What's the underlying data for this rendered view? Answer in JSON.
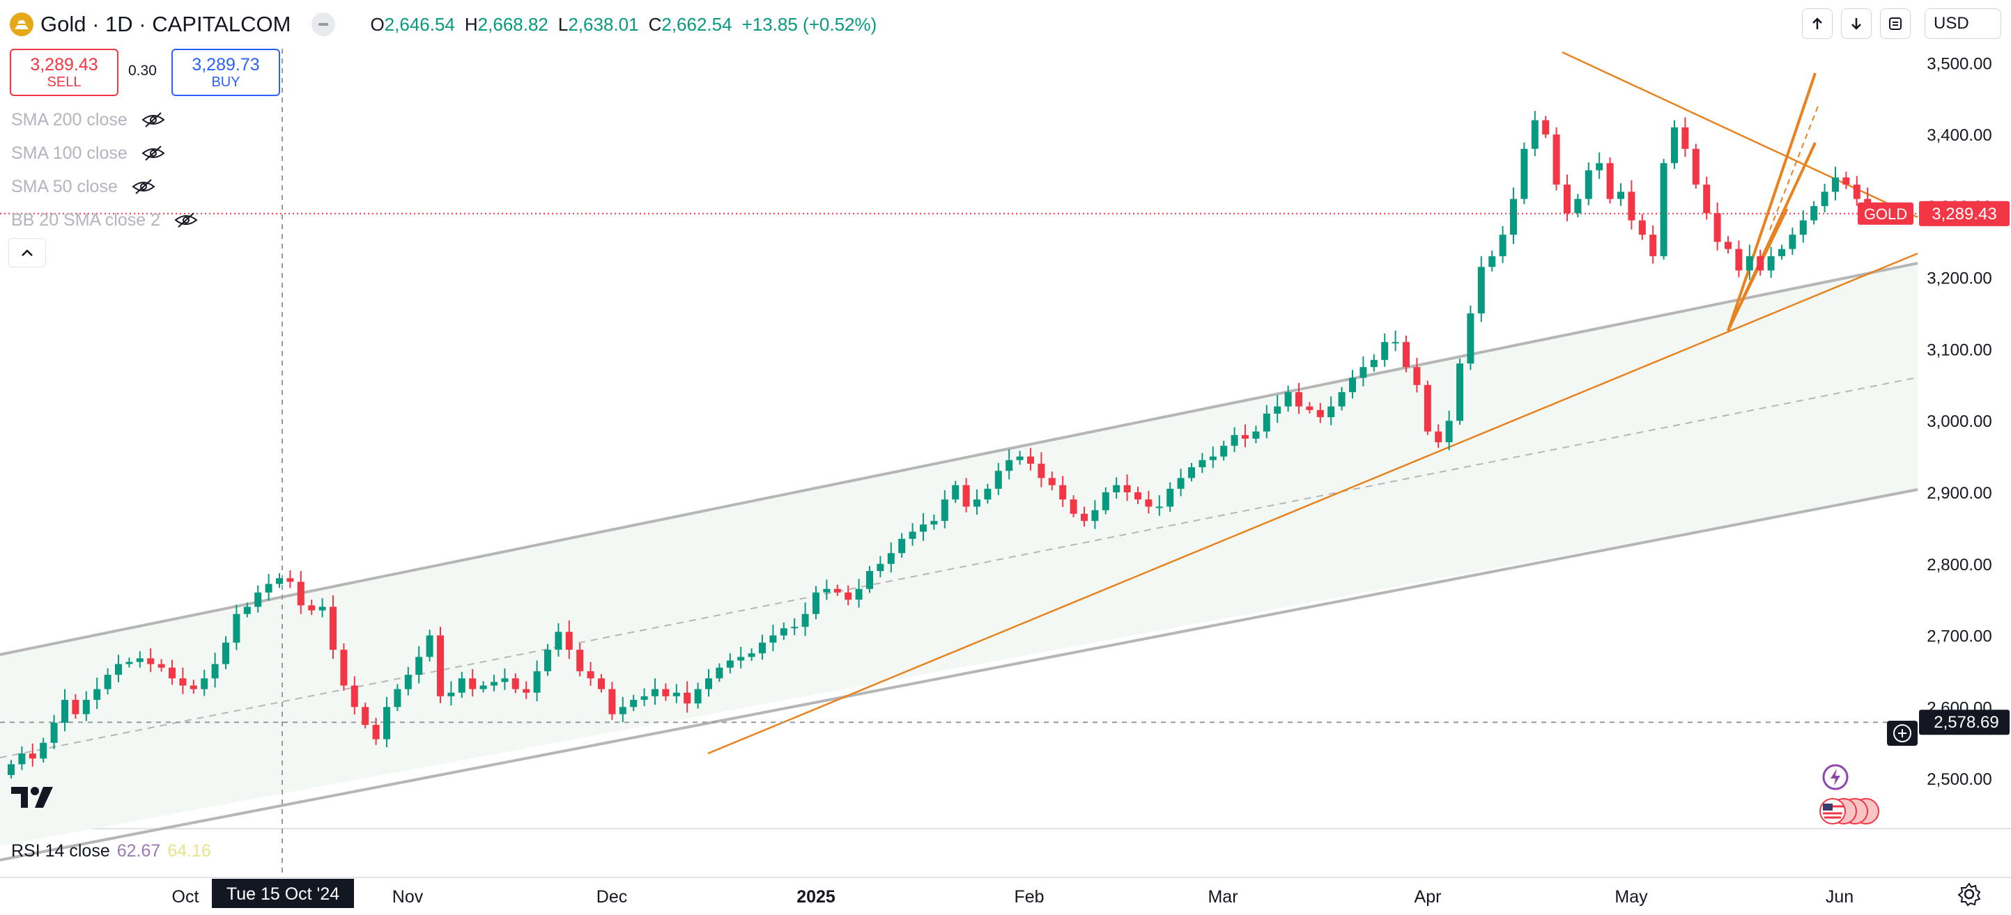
{
  "header": {
    "symbol_title": "Gold · 1D · CAPITALCOM",
    "ohlc": {
      "open_key": "O",
      "open": "2,646.54",
      "high_key": "H",
      "high": "2,668.82",
      "low_key": "L",
      "low": "2,638.01",
      "close_key": "C",
      "close": "2,662.54",
      "change": "+13.85 (+0.52%)"
    }
  },
  "trade": {
    "sell_price": "3,289.43",
    "sell_label": "SELL",
    "spread": "0.30",
    "buy_price": "3,289.73",
    "buy_label": "BUY"
  },
  "indicators": [
    {
      "label": "SMA 200 close"
    },
    {
      "label": "SMA 100 close"
    },
    {
      "label": "SMA 50 close"
    },
    {
      "label": "BB 20 SMA close 2"
    }
  ],
  "rsi": {
    "label": "RSI 14 close",
    "value1": "62.67",
    "value2": "64.16"
  },
  "currency": "USD",
  "colors": {
    "up": "#089981",
    "down": "#f23645",
    "trend": "#e8821e",
    "channel": "#b6b6b6",
    "fill": "#f4f8f4",
    "sell": "#f23645",
    "buy": "#2962ff"
  },
  "icons": [
    "gold-logo-icon",
    "hide-eye-icon",
    "chevron-up-icon",
    "arrow-up-icon",
    "arrow-down-icon",
    "refresh-icon",
    "plus-circle-icon",
    "flash-icon",
    "us-flags-icon",
    "gear-icon",
    "tradingview-logo-icon"
  ],
  "chart_data": {
    "type": "candlestick",
    "title": "Gold · 1D · CAPITALCOM",
    "ylim": [
      2430,
      3515
    ],
    "y_ticks": [
      {
        "value": 2500,
        "label": "2,500.00"
      },
      {
        "value": 2600,
        "label": "2,600.00"
      },
      {
        "value": 2700,
        "label": "2,700.00"
      },
      {
        "value": 2800,
        "label": "2,800.00"
      },
      {
        "value": 2900,
        "label": "2,900.00"
      },
      {
        "value": 3000,
        "label": "3,000.00"
      },
      {
        "value": 3100,
        "label": "3,100.00"
      },
      {
        "value": 3200,
        "label": "3,200.00"
      },
      {
        "value": 3300,
        "label": "3,300.00"
      },
      {
        "value": 3400,
        "label": "3,400.00"
      },
      {
        "value": 3500,
        "label": "3,500.00"
      }
    ],
    "x_ticks": [
      {
        "index": 0,
        "label": "Oct",
        "bold": false
      },
      {
        "index": 23,
        "label": "Nov",
        "bold": false
      },
      {
        "index": 44,
        "label": "Dec",
        "bold": false
      },
      {
        "index": 66,
        "label": "2025",
        "bold": true
      },
      {
        "index": 88,
        "label": "Feb",
        "bold": false
      },
      {
        "index": 107,
        "label": "Mar",
        "bold": false
      },
      {
        "index": 128,
        "label": "Apr",
        "bold": false
      },
      {
        "index": 148,
        "label": "May",
        "bold": false
      },
      {
        "index": 169,
        "label": "Jun",
        "bold": false
      }
    ],
    "crosshair": {
      "index": 10,
      "label": "Tue 15 Oct '24",
      "price": 2578.69,
      "price_label": "2,578.69"
    },
    "last_price": {
      "value": 3289.43,
      "label": "3,289.43",
      "symbol": "GOLD"
    },
    "close": [
      2520,
      2535,
      2528,
      2550,
      2578,
      2610,
      2590,
      2610,
      2625,
      2645,
      2660,
      2663,
      2668,
      2660,
      2655,
      2640,
      2630,
      2625,
      2640,
      2660,
      2690,
      2730,
      2740,
      2760,
      2772,
      2780,
      2775,
      2742,
      2735,
      2740,
      2680,
      2630,
      2600,
      2575,
      2555,
      2600,
      2625,
      2645,
      2670,
      2700,
      2615,
      2620,
      2640,
      2625,
      2630,
      2635,
      2640,
      2625,
      2620,
      2650,
      2680,
      2705,
      2680,
      2650,
      2640,
      2625,
      2590,
      2600,
      2610,
      2615,
      2625,
      2615,
      2620,
      2605,
      2625,
      2640,
      2655,
      2665,
      2670,
      2675,
      2690,
      2700,
      2710,
      2712,
      2730,
      2760,
      2765,
      2760,
      2750,
      2765,
      2790,
      2800,
      2815,
      2835,
      2845,
      2855,
      2860,
      2890,
      2910,
      2880,
      2890,
      2905,
      2930,
      2945,
      2950,
      2940,
      2920,
      2910,
      2890,
      2870,
      2860,
      2875,
      2900,
      2910,
      2900,
      2890,
      2880,
      2880,
      2905,
      2920,
      2935,
      2945,
      2950,
      2965,
      2980,
      2975,
      2985,
      3010,
      3020,
      3040,
      3020,
      3015,
      3005,
      3020,
      3040,
      3060,
      3075,
      3085,
      3110,
      3110,
      3075,
      3050,
      2985,
      2970,
      3000,
      3080,
      3150,
      3215,
      3230,
      3260,
      3310,
      3380,
      3420,
      3400,
      3330,
      3290,
      3310,
      3350,
      3360,
      3310,
      3320,
      3280,
      3260,
      3230,
      3360,
      3410,
      3380,
      3330,
      3290,
      3250,
      3240,
      3210,
      3230,
      3210,
      3230,
      3240,
      3260,
      3280,
      3300,
      3320,
      3340,
      3330,
      3310,
      3290,
      3289
    ]
  }
}
